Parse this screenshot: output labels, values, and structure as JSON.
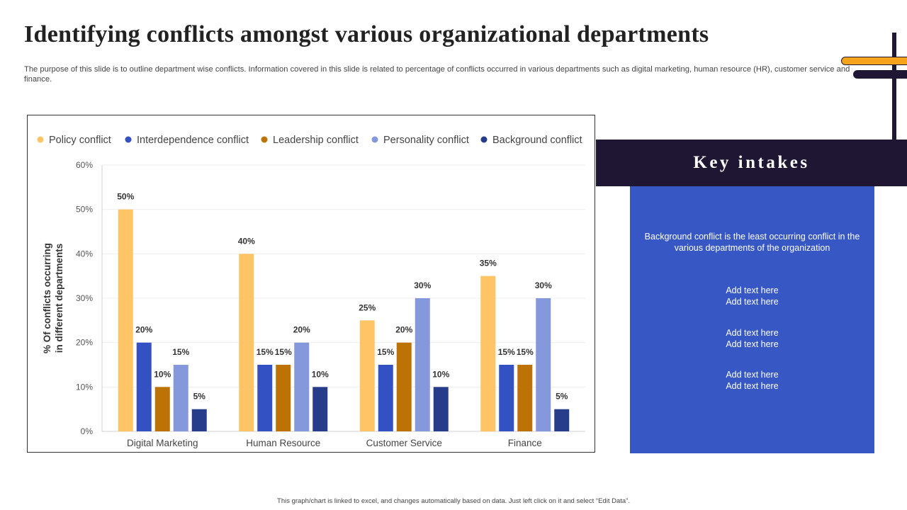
{
  "title": "Identifying conflicts amongst various organizational departments",
  "subtitle": "The purpose of this slide is to outline department wise conflicts. Information covered in this slide is related to percentage of conflicts occurred in various departments such as digital marketing, human resource (HR), customer service and finance.",
  "key_intakes": {
    "heading": "Key intakes",
    "point1": "Background conflict is the least occurring conflict in the various departments of the organization",
    "point2": "Add text here\nAdd text here",
    "point3": "Add text here\nAdd text here",
    "point4": "Add text here\nAdd text here"
  },
  "footer": "This graph/chart is linked to excel, and changes automatically based on data. Just left click on it and select “Edit Data”.",
  "chart_data": {
    "type": "bar",
    "categories": [
      "Digital Marketing",
      "Human Resource",
      "Customer Service",
      "Finance"
    ],
    "series": [
      {
        "name": "Policy conflict",
        "values": [
          50,
          40,
          25,
          35
        ],
        "color": "#ffc466"
      },
      {
        "name": "Interdependence conflict",
        "values": [
          20,
          15,
          15,
          15
        ],
        "color": "#3451c4"
      },
      {
        "name": "Leadership conflict",
        "values": [
          10,
          15,
          20,
          15
        ],
        "color": "#bd7206"
      },
      {
        "name": "Personality conflict",
        "values": [
          15,
          20,
          30,
          30
        ],
        "color": "#8598dc"
      },
      {
        "name": "Background conflict",
        "values": [
          5,
          10,
          10,
          5
        ],
        "color": "#283c8c"
      }
    ],
    "ylabel": "% Of conflicts occurring in different departments",
    "ylabel_lines": [
      "% Of conflicts occurring",
      "in different departments"
    ],
    "ylim": [
      0,
      60
    ],
    "yticks": [
      0,
      10,
      20,
      30,
      40,
      50,
      60
    ],
    "ytick_labels": [
      "0%",
      "10%",
      "20%",
      "30%",
      "40%",
      "50%",
      "60%"
    ],
    "value_suffix": "%",
    "legend_position": "top",
    "grid": true
  }
}
